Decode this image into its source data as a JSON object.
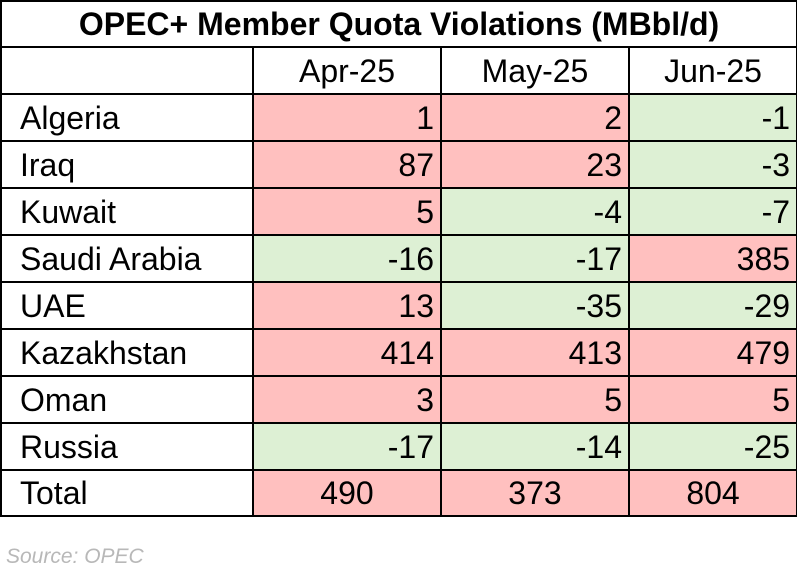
{
  "chart_data": {
    "type": "table",
    "title": "OPEC+ Member Quota Violations (MBbl/d)",
    "columns": [
      "Apr-25",
      "May-25",
      "Jun-25"
    ],
    "rows": [
      {
        "country": "Algeria",
        "values": [
          1,
          2,
          -1
        ]
      },
      {
        "country": "Iraq",
        "values": [
          87,
          23,
          -3
        ]
      },
      {
        "country": "Kuwait",
        "values": [
          5,
          -4,
          -7
        ]
      },
      {
        "country": "Saudi Arabia",
        "values": [
          -16,
          -17,
          385
        ]
      },
      {
        "country": "UAE",
        "values": [
          13,
          -35,
          -29
        ]
      },
      {
        "country": "Kazakhstan",
        "values": [
          414,
          413,
          479
        ]
      },
      {
        "country": "Oman",
        "values": [
          3,
          5,
          5
        ]
      },
      {
        "country": "Russia",
        "values": [
          -17,
          -14,
          -25
        ]
      }
    ],
    "total": {
      "label": "Total",
      "values": [
        490,
        373,
        804
      ]
    },
    "colors": {
      "positive": "#ffc0bf",
      "negative": "#ddf0d4"
    }
  },
  "source": "Source: OPEC"
}
